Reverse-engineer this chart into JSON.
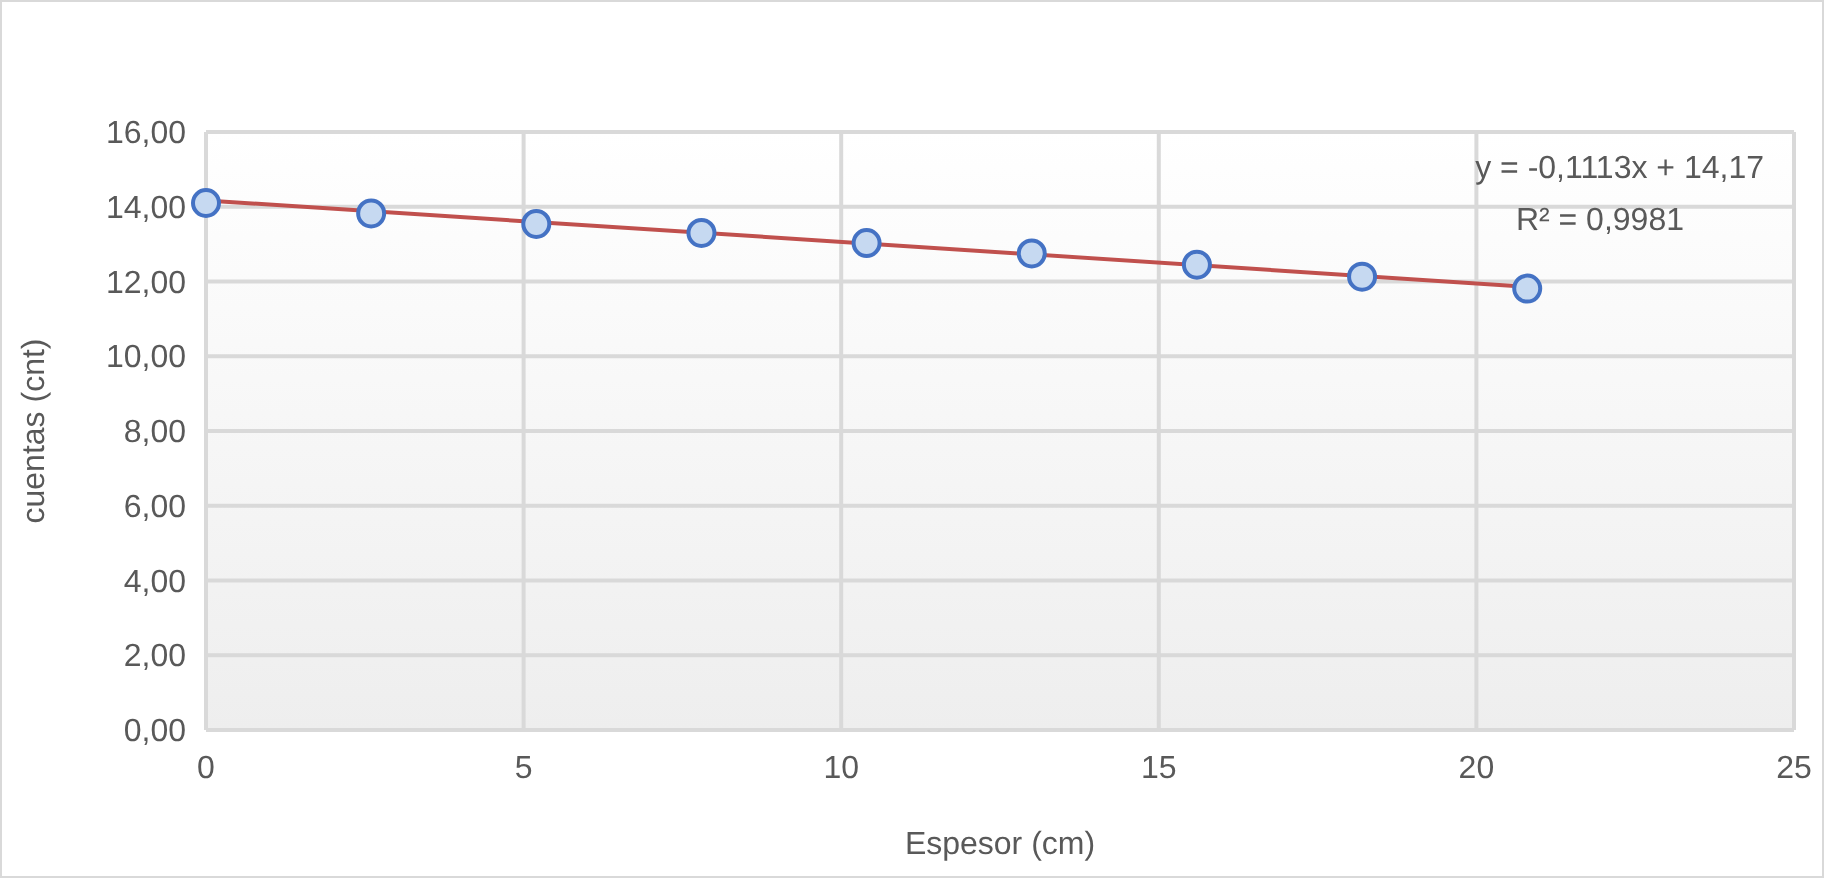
{
  "chart_data": {
    "type": "scatter",
    "xlabel": "Espesor (cm)",
    "ylabel": "cuentas (cnt)",
    "xlim": [
      0,
      25
    ],
    "xticks": [
      0,
      5,
      10,
      15,
      20,
      25
    ],
    "ylim": [
      0,
      16
    ],
    "yticks": [
      {
        "value": 0,
        "label": "0,00"
      },
      {
        "value": 2,
        "label": "2,00"
      },
      {
        "value": 4,
        "label": "4,00"
      },
      {
        "value": 6,
        "label": "6,00"
      },
      {
        "value": 8,
        "label": "8,00"
      },
      {
        "value": 10,
        "label": "10,00"
      },
      {
        "value": 12,
        "label": "12,00"
      },
      {
        "value": 14,
        "label": "14,00"
      },
      {
        "value": 16,
        "label": "16,00"
      }
    ],
    "grid": true,
    "series": [
      {
        "marker": "circle",
        "color": "#4472c4",
        "x": [
          0,
          2.6,
          5.2,
          7.8,
          10.4,
          13,
          15.6,
          18.2,
          20.8
        ],
        "values": [
          14.1,
          13.82,
          13.54,
          13.3,
          13.03,
          12.75,
          12.45,
          12.13,
          11.81
        ]
      },
      {
        "type": "line",
        "marker": "none",
        "color": "#c0504d",
        "x": [
          0,
          20.8
        ],
        "values": [
          14.17,
          11.86
        ]
      }
    ],
    "annotations": [
      "y = -0,1113x + 14,17",
      "R² = 0,9981"
    ]
  }
}
